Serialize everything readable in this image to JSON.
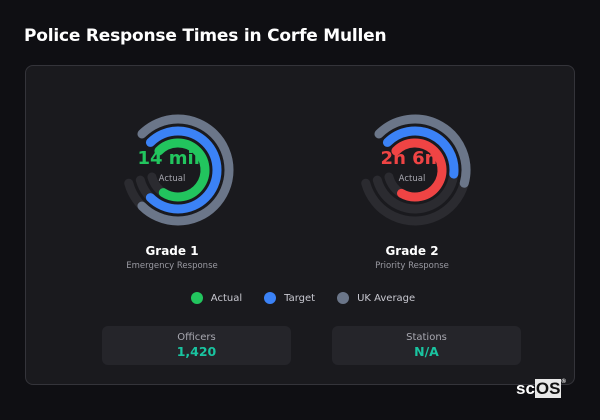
{
  "title": "Police Response Times in Corfe Mullen",
  "chart_data": {
    "type": "radial-bar",
    "ring_order": [
      "UK Average",
      "Target",
      "Actual"
    ],
    "value_unit": "fraction of full arc",
    "charts": [
      {
        "name": "Grade 1",
        "subtitle": "Emergency Response",
        "center_value": "14 min",
        "center_label": "Actual",
        "actual_color": "#22c55e",
        "fractions": {
          "UK Average": 0.9,
          "Target": 0.9,
          "Actual": 0.86
        }
      },
      {
        "name": "Grade 2",
        "subtitle": "Priority Response",
        "center_value": "2h 6m",
        "center_label": "Actual",
        "actual_color": "#ef4444",
        "fractions": {
          "UK Average": 0.5,
          "Target": 0.47,
          "Actual": 0.85
        }
      }
    ],
    "legend": [
      {
        "label": "Actual",
        "color": "#22c55e"
      },
      {
        "label": "Target",
        "color": "#3b82f6"
      },
      {
        "label": "UK Average",
        "color": "#6b7689"
      }
    ],
    "legend_position": "bottom",
    "track_color": "#2b2b30"
  },
  "stats": [
    {
      "label": "Officers",
      "value": "1,420"
    },
    {
      "label": "Stations",
      "value": "N/A"
    }
  ],
  "logo": {
    "text": "scOS",
    "mark": "®"
  }
}
